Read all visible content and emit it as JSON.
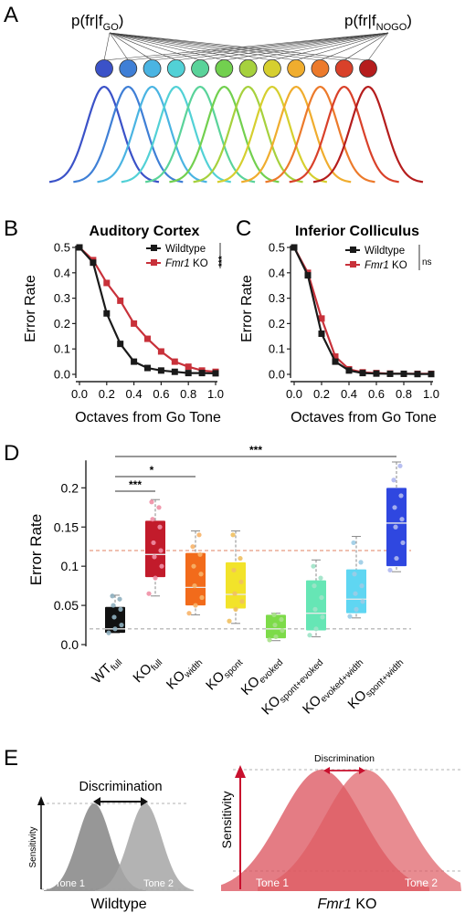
{
  "panels": {
    "A": {
      "letter": "A",
      "label_left": "p(fr|f",
      "label_left_sub": "GO",
      "label_left_close": ")",
      "label_right": "p(fr|f",
      "label_right_sub": "NOGO",
      "label_right_close": ")",
      "neuron_colors": [
        "#3b52c8",
        "#3f7fd6",
        "#4ab4e2",
        "#52d1d6",
        "#5ad39a",
        "#72d04f",
        "#a6d13d",
        "#d6cf2f",
        "#f0ad2e",
        "#ec7a2b",
        "#d9412a",
        "#b51d1d"
      ]
    },
    "B": {
      "letter": "B",
      "title": "Auditory Cortex",
      "ylabel": "Error Rate",
      "xlabel": "Octaves from Go Tone",
      "legend": [
        "Wildtype",
        "Fmr1",
        " KO"
      ],
      "sig": "***"
    },
    "C": {
      "letter": "C",
      "title": "Inferior Colliculus",
      "ylabel": "Error Rate",
      "xlabel": "Octaves from Go Tone",
      "legend": [
        "Wildtype",
        "Fmr1",
        " KO"
      ],
      "sig": "ns"
    },
    "D": {
      "letter": "D",
      "ylabel": "Error Rate",
      "sig_labels": [
        "***",
        "*",
        "***"
      ]
    },
    "E": {
      "letter": "E",
      "left": {
        "discrimination": "Discrimination",
        "sensitivity": "Sensitivity",
        "tone1": "Tone 1",
        "tone2": "Tone 2",
        "title": "Wildtype"
      },
      "right": {
        "discrimination": "Discrimination",
        "sensitivity": "Sensitivity",
        "tone1": "Tone 1",
        "tone2": "Tone 2",
        "title_italic": "Fmr1",
        "title_rest": " KO"
      }
    }
  },
  "chart_data": [
    {
      "panel": "B",
      "type": "line",
      "title": "Auditory Cortex",
      "xlabel": "Octaves from Go Tone",
      "ylabel": "Error Rate",
      "xlim": [
        0,
        1.0
      ],
      "ylim": [
        0,
        0.5
      ],
      "xticks": [
        "0.0",
        "0.2",
        "0.4",
        "0.6",
        "0.8",
        "1.0"
      ],
      "yticks": [
        "0.0",
        "0.1",
        "0.2",
        "0.3",
        "0.4",
        "0.5"
      ],
      "x": [
        0.0,
        0.1,
        0.2,
        0.3,
        0.4,
        0.5,
        0.6,
        0.7,
        0.8,
        0.9,
        1.0
      ],
      "series": [
        {
          "name": "Wildtype",
          "color": "#1a1a1a",
          "values": [
            0.5,
            0.44,
            0.24,
            0.12,
            0.05,
            0.025,
            0.015,
            0.01,
            0.005,
            0.005,
            0.004
          ]
        },
        {
          "name": "Fmr1 KO",
          "color": "#c8313a",
          "values": [
            0.5,
            0.45,
            0.36,
            0.29,
            0.2,
            0.14,
            0.09,
            0.05,
            0.03,
            0.015,
            0.01
          ]
        }
      ]
    },
    {
      "panel": "C",
      "type": "line",
      "title": "Inferior Colliculus",
      "xlabel": "Octaves from Go Tone",
      "ylabel": "Error Rate",
      "xlim": [
        0,
        1.0
      ],
      "ylim": [
        0,
        0.5
      ],
      "xticks": [
        "0.0",
        "0.2",
        "0.4",
        "0.6",
        "0.8",
        "1.0"
      ],
      "yticks": [
        "0.0",
        "0.1",
        "0.2",
        "0.3",
        "0.4",
        "0.5"
      ],
      "x": [
        0.0,
        0.1,
        0.2,
        0.3,
        0.4,
        0.5,
        0.6,
        0.7,
        0.8,
        0.9,
        1.0
      ],
      "series": [
        {
          "name": "Wildtype",
          "color": "#1a1a1a",
          "values": [
            0.5,
            0.39,
            0.16,
            0.05,
            0.015,
            0.005,
            0.003,
            0.002,
            0.002,
            0.001,
            0.001
          ]
        },
        {
          "name": "Fmr1 KO",
          "color": "#c8313a",
          "values": [
            0.5,
            0.4,
            0.22,
            0.07,
            0.02,
            0.008,
            0.005,
            0.003,
            0.002,
            0.002,
            0.002
          ]
        }
      ]
    },
    {
      "panel": "D",
      "type": "box",
      "ylabel": "Error Rate",
      "ylim": [
        0,
        0.24
      ],
      "yticks": [
        "0.0",
        "0.05",
        "0.1",
        "0.15",
        "0.2"
      ],
      "reference_lines": [
        {
          "y": 0.12,
          "color": "#e89a80"
        },
        {
          "y": 0.02,
          "color": "#aaaaaa"
        }
      ],
      "categories": [
        {
          "main": "WT",
          "sub": "full"
        },
        {
          "main": "KO",
          "sub": "full"
        },
        {
          "main": "KO",
          "sub": "width"
        },
        {
          "main": "KO",
          "sub": "spont"
        },
        {
          "main": "KO",
          "sub": "evoked"
        },
        {
          "main": "KO",
          "sub": "spont+evoked"
        },
        {
          "main": "KO",
          "sub": "evoked+width"
        },
        {
          "main": "KO",
          "sub": "spont+width"
        }
      ],
      "boxes": [
        {
          "color": "#111111",
          "dot": "#8fb0c0",
          "min": 0.015,
          "q1": 0.015,
          "median": 0.02,
          "q3": 0.048,
          "max": 0.063,
          "points": [
            0.015,
            0.02,
            0.025,
            0.035,
            0.045,
            0.05,
            0.058,
            0.062
          ]
        },
        {
          "color": "#c21b2b",
          "dot": "#f08fa5",
          "min": 0.062,
          "q1": 0.086,
          "median": 0.115,
          "q3": 0.158,
          "max": 0.185,
          "points": [
            0.065,
            0.085,
            0.1,
            0.112,
            0.12,
            0.13,
            0.15,
            0.16,
            0.175,
            0.182
          ]
        },
        {
          "color": "#f26b1b",
          "dot": "#f7b46a",
          "min": 0.038,
          "q1": 0.05,
          "median": 0.073,
          "q3": 0.117,
          "max": 0.145,
          "points": [
            0.04,
            0.05,
            0.06,
            0.075,
            0.09,
            0.1,
            0.115,
            0.125,
            0.14
          ]
        },
        {
          "color": "#f2e32a",
          "dot": "#f0c060",
          "min": 0.027,
          "q1": 0.046,
          "median": 0.064,
          "q3": 0.105,
          "max": 0.145,
          "points": [
            0.03,
            0.045,
            0.055,
            0.065,
            0.08,
            0.095,
            0.11,
            0.14
          ]
        },
        {
          "color": "#7ddb49",
          "dot": "#a8e08a",
          "min": 0.005,
          "q1": 0.008,
          "median": 0.02,
          "q3": 0.038,
          "max": 0.04,
          "points": [
            0.006,
            0.01,
            0.018,
            0.025,
            0.032,
            0.038
          ]
        },
        {
          "color": "#66e6b5",
          "dot": "#9fe3c8",
          "min": 0.01,
          "q1": 0.018,
          "median": 0.04,
          "q3": 0.082,
          "max": 0.108,
          "points": [
            0.012,
            0.02,
            0.035,
            0.045,
            0.06,
            0.075,
            0.085,
            0.1
          ]
        },
        {
          "color": "#5fd6f2",
          "dot": "#9ccce6",
          "min": 0.034,
          "q1": 0.04,
          "median": 0.058,
          "q3": 0.096,
          "max": 0.138,
          "points": [
            0.036,
            0.045,
            0.055,
            0.065,
            0.075,
            0.09,
            0.105,
            0.13
          ]
        },
        {
          "color": "#2f47e0",
          "dot": "#b0b8f0",
          "min": 0.093,
          "q1": 0.1,
          "median": 0.155,
          "q3": 0.2,
          "max": 0.233,
          "points": [
            0.095,
            0.11,
            0.13,
            0.15,
            0.16,
            0.175,
            0.19,
            0.21,
            0.228
          ]
        }
      ],
      "significance": [
        {
          "from": 0,
          "to": 1,
          "label": "***"
        },
        {
          "from": 0,
          "to": 2,
          "label": "*"
        },
        {
          "from": 0,
          "to": 7,
          "label": "***"
        }
      ]
    }
  ]
}
